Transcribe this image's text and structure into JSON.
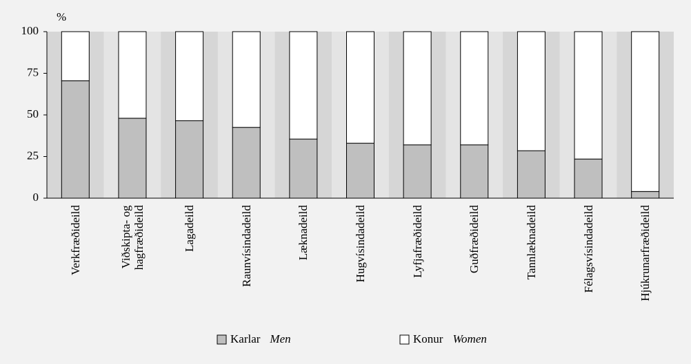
{
  "chart_data": {
    "type": "stacked_bar",
    "y_unit": "%",
    "categories": [
      "Verkfræðideild",
      "Viðskipta- og\nhagfræðideild",
      "Lagadeild",
      "Raunvísindadeild",
      "Læknadeild",
      "Hugvísindadeild",
      "Lyfjafræðideild",
      "Guðfræðideild",
      "Tannlæknadeild",
      "Félagsvísindadeild",
      "Hjúkrunarfræðideild"
    ],
    "series": [
      {
        "name": "Karlar",
        "name_en": "Men",
        "color": "#bfbfbf",
        "values": [
          70.5,
          48,
          46.5,
          42.5,
          35.5,
          33,
          32,
          32,
          28.5,
          23.5,
          4
        ]
      },
      {
        "name": "Konur",
        "name_en": "Women",
        "color": "#ffffff",
        "values": [
          29.5,
          52,
          53.5,
          57.5,
          64.5,
          67,
          68,
          68,
          71.5,
          76.5,
          96
        ]
      }
    ],
    "ylim": [
      0,
      100
    ],
    "yticks": [
      0,
      25,
      50,
      75,
      100
    ]
  }
}
